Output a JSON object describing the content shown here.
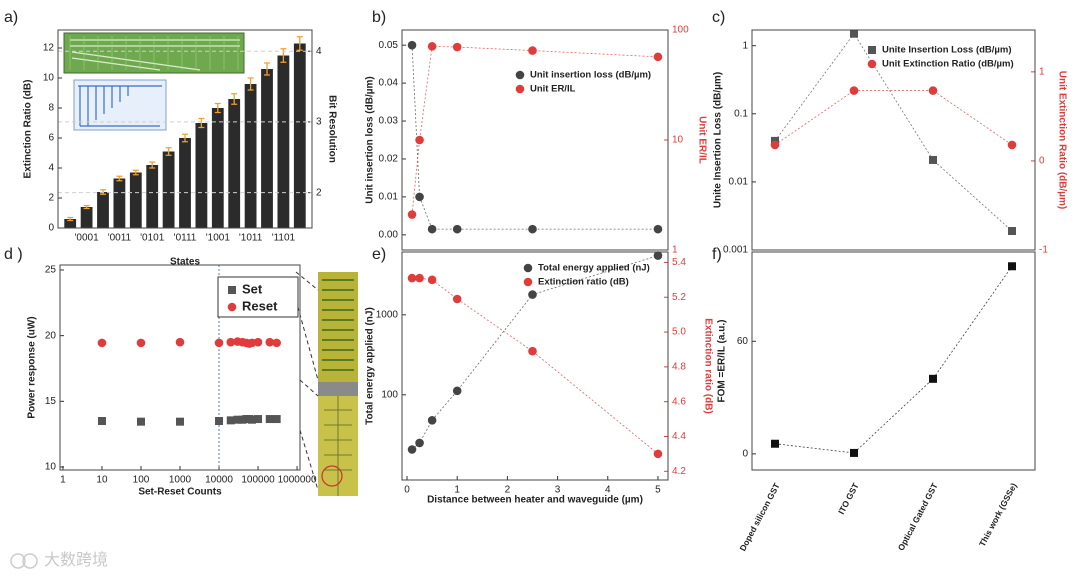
{
  "chart_data": [
    {
      "type": "bar",
      "panel_label": "a)",
      "x_label": "States",
      "y_label": "Extinction Ratio (dB)",
      "y2_label": "Bit Resolution",
      "categories": [
        null,
        "'0001",
        null,
        "'0011",
        null,
        "'0101",
        null,
        "'0111",
        null,
        "'1001",
        null,
        "'1011",
        null,
        "'1101",
        null
      ],
      "values": [
        0.6,
        1.4,
        2.4,
        3.3,
        3.7,
        4.2,
        5.1,
        6.0,
        7.0,
        8.0,
        8.6,
        9.6,
        10.6,
        11.5,
        12.3
      ],
      "errors": [
        0.1,
        0.1,
        0.15,
        0.15,
        0.15,
        0.2,
        0.25,
        0.25,
        0.3,
        0.3,
        0.35,
        0.4,
        0.4,
        0.45,
        0.45
      ],
      "color": "#2b2b2b",
      "error_color": "#f0a030",
      "ylim": [
        0,
        13.2
      ],
      "yticks": [
        0,
        2,
        4,
        6,
        8,
        10,
        12
      ],
      "y2lim": [
        1.5,
        4.3
      ],
      "y2ticks": [
        2,
        3,
        4
      ],
      "y2grid": true
    },
    {
      "type": "line",
      "panel_label": "b)",
      "y_label": "Unit insertion loss (dB/µm)",
      "y2_label": "Unit ER/IL",
      "y2color": "#e03c3c",
      "x": [
        0.1,
        0.25,
        0.5,
        1,
        2.5,
        5
      ],
      "xlim": [
        -0.1,
        5.2
      ],
      "ylim": [
        -0.004,
        0.054
      ],
      "yticks": [
        {
          "value": 0,
          "label": "0.00"
        },
        0.01,
        0.02,
        0.03,
        0.04,
        0.05
      ],
      "y2log": true,
      "y2lim": [
        1,
        100
      ],
      "y2ticks": [
        1,
        10,
        100
      ],
      "legend": "upper right",
      "series": [
        {
          "name": "Unit insertion loss (dB/µm)",
          "color": "#444444",
          "marker": "circle",
          "values": [
            0.05,
            0.01,
            0.0015,
            0.0015,
            0.0015,
            0.0015
          ]
        },
        {
          "name": "Unit ER/IL",
          "color": "#e03c3c",
          "marker": "circle",
          "axis": "y2",
          "values": [
            2.1,
            10,
            71,
            70,
            65,
            57
          ]
        }
      ]
    },
    {
      "type": "line",
      "panel_label": "c)",
      "y_label": "Unite Insertion Loss (dB/µm)",
      "y2_label": "Unit Extinction Ratio (dB/µm)",
      "y2color": "#e03c3c",
      "ylog": true,
      "ylim": [
        0.001,
        1.7
      ],
      "yticks": [
        0.001,
        0.01,
        0.1,
        1
      ],
      "y2lim": [
        -1,
        1.47
      ],
      "y2ticks": [
        -1,
        0,
        1
      ],
      "legend": "upper right",
      "series": [
        {
          "name": "Unite Insertion Loss (dB/µm)",
          "color": "#555555",
          "marker": "square",
          "values": [
            0.04,
            1.5,
            0.021,
            0.0019
          ]
        },
        {
          "name": "Unit Extinction Ratio (dB/µm)",
          "color": "#e03c3c",
          "marker": "circle",
          "axis": "y2",
          "values": [
            0.18,
            0.79,
            0.79,
            0.18
          ]
        }
      ]
    },
    {
      "type": "scatter",
      "panel_label": "d )",
      "x_label": "Set-Reset Counts",
      "y_label": "Power response (uW)",
      "xlog": true,
      "xlim": [
        0.84,
        1190000
      ],
      "xticks": [
        1,
        10,
        100,
        1000,
        10000,
        100000,
        1000000
      ],
      "ylim": [
        9.77,
        25.38
      ],
      "yticks": [
        10,
        15,
        20,
        25
      ],
      "vline_x": 10000,
      "legend": "upper right",
      "series": [
        {
          "name": "Set",
          "color": "#555555",
          "marker": "square",
          "x": [
            10,
            100,
            1000,
            10000,
            20000,
            30000,
            40000,
            50000,
            60000,
            70000,
            100000,
            200000,
            300000
          ],
          "values": [
            13.5,
            13.45,
            13.45,
            13.5,
            13.55,
            13.6,
            13.6,
            13.65,
            13.65,
            13.6,
            13.65,
            13.65,
            13.65
          ]
        },
        {
          "name": "Reset",
          "color": "#e03c3c",
          "marker": "circle",
          "x": [
            10,
            100,
            1000,
            10000,
            20000,
            30000,
            40000,
            50000,
            60000,
            70000,
            100000,
            200000,
            300000
          ],
          "values": [
            19.45,
            19.45,
            19.5,
            19.45,
            19.5,
            19.55,
            19.5,
            19.45,
            19.4,
            19.45,
            19.5,
            19.5,
            19.45
          ]
        }
      ]
    },
    {
      "type": "line",
      "panel_label": "e)",
      "x_label": "Distance between heater and waveguide (µm)",
      "y_label": "Total energy applied (nJ)",
      "y2_label": "Extinction ratio (dB)",
      "y2color": "#e03c3c",
      "x": [
        0.1,
        0.25,
        0.5,
        1,
        2.5,
        5
      ],
      "xlim": [
        -0.1,
        5.2
      ],
      "xticks": [
        0,
        1,
        2,
        3,
        4,
        5
      ],
      "ylog": true,
      "ylim": [
        8.6,
        6100
      ],
      "yticks": [
        100,
        1000
      ],
      "y2lim": [
        4.15,
        5.46
      ],
      "y2ticks": [
        4.2,
        4.4,
        4.6,
        4.8,
        {
          "value": 5,
          "label": "5.0"
        },
        5.2,
        5.4
      ],
      "legend": "upper right",
      "series": [
        {
          "name": "Total energy applied (nJ)",
          "color": "#444444",
          "marker": "circle",
          "values": [
            20.7,
            25,
            48,
            112,
            1790,
            5500
          ]
        },
        {
          "name": "Extinction ratio (dB)",
          "color": "#e03c3c",
          "marker": "circle",
          "axis": "y2",
          "values": [
            5.31,
            5.31,
            5.3,
            5.19,
            4.89,
            4.3
          ]
        }
      ]
    },
    {
      "type": "line",
      "panel_label": "f)",
      "y_label": "FOM =ER/IL (a.u.)",
      "categories": [
        "Doped silicon GST",
        "ITO GST",
        "Optical Gated GST",
        "This work (GSSe)"
      ],
      "ylim": [
        -8.6,
        107.6
      ],
      "yticks": [
        0,
        60
      ],
      "series": [
        {
          "color": "#111111",
          "marker": "square",
          "values": [
            5.4,
            0.5,
            40,
            100
          ]
        }
      ]
    }
  ],
  "watermark": "大数跨境"
}
